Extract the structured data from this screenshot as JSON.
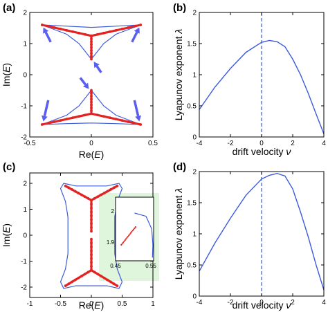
{
  "colors": {
    "curve": "#3b5bdb",
    "thick": "#e32222",
    "arrow": "#5a5ef0",
    "inset_bg": "#dff5dc",
    "frame": "#000000"
  },
  "chart_data": [
    {
      "panel": "(a)",
      "type": "line",
      "xlabel": "Re(E)",
      "ylabel": "Im(E)",
      "xlim": [
        -0.5,
        0.5
      ],
      "ylim": [
        -2,
        2
      ],
      "xticks": [
        -0.5,
        0,
        0.5
      ],
      "yticks": [
        -2,
        -1,
        0,
        1,
        2
      ],
      "xtick_labels": [
        "-0.5",
        "0",
        "0.5"
      ],
      "ytick_labels": [
        "-2",
        "-1",
        "0",
        "1",
        "2"
      ],
      "curves": [
        {
          "kind": "thin",
          "points": [
            [
              -0.4,
              1.6
            ],
            [
              -0.2,
              1.3
            ],
            [
              -0.1,
              1.0
            ],
            [
              0,
              0.5
            ],
            [
              0.1,
              1.0
            ],
            [
              0.2,
              1.3
            ],
            [
              0.4,
              1.6
            ]
          ]
        },
        {
          "kind": "thin",
          "points": [
            [
              -0.4,
              1.6
            ],
            [
              -0.2,
              1.56
            ],
            [
              0,
              1.52
            ],
            [
              0.2,
              1.56
            ],
            [
              0.4,
              1.6
            ]
          ]
        },
        {
          "kind": "thin",
          "points": [
            [
              -0.4,
              -1.6
            ],
            [
              -0.2,
              -1.3
            ],
            [
              -0.1,
              -1.0
            ],
            [
              0,
              -0.5
            ],
            [
              0.1,
              -1.0
            ],
            [
              0.2,
              -1.3
            ],
            [
              0.4,
              -1.6
            ]
          ]
        },
        {
          "kind": "thin",
          "points": [
            [
              -0.4,
              -1.6
            ],
            [
              -0.2,
              -1.57
            ],
            [
              0,
              -1.55
            ],
            [
              0.2,
              -1.57
            ],
            [
              0.4,
              -1.6
            ]
          ]
        },
        {
          "kind": "thick",
          "points": [
            [
              -0.4,
              1.6
            ],
            [
              0,
              1.25
            ],
            [
              0.4,
              1.6
            ]
          ]
        },
        {
          "kind": "thick",
          "points": [
            [
              0,
              1.25
            ],
            [
              0,
              0.5
            ]
          ]
        },
        {
          "kind": "thick",
          "points": [
            [
              -0.4,
              -1.6
            ],
            [
              0,
              -1.25
            ],
            [
              0.4,
              -1.6
            ]
          ]
        },
        {
          "kind": "thick",
          "points": [
            [
              0,
              -1.25
            ],
            [
              0,
              -0.5
            ]
          ]
        }
      ],
      "arrows": [
        [
          [
            -0.33,
            1.05
          ],
          [
            -0.39,
            1.52
          ]
        ],
        [
          [
            0.33,
            1.05
          ],
          [
            0.39,
            1.52
          ]
        ],
        [
          [
            0.08,
            0.07
          ],
          [
            0.02,
            0.42
          ]
        ],
        [
          [
            -0.09,
            -0.1
          ],
          [
            -0.02,
            -0.46
          ]
        ],
        [
          [
            -0.35,
            -0.82
          ],
          [
            -0.39,
            -1.5
          ]
        ],
        [
          [
            0.35,
            -0.82
          ],
          [
            0.39,
            -1.5
          ]
        ]
      ]
    },
    {
      "panel": "(b)",
      "type": "line",
      "xlabel": "drift velocity ν",
      "ylabel": "Lyapunov exponent λ",
      "xlim": [
        -4,
        4
      ],
      "ylim": [
        0,
        2
      ],
      "xticks": [
        -4,
        -2,
        0,
        2,
        4
      ],
      "yticks": [
        0,
        0.5,
        1,
        1.5,
        2
      ],
      "xtick_labels": [
        "-4",
        "-2",
        "0",
        "2",
        "4"
      ],
      "ytick_labels": [
        "0",
        "0.5",
        "1",
        "1.5",
        "2"
      ],
      "vline_x": 0,
      "x": [
        -4,
        -3,
        -2,
        -1,
        0,
        0.5,
        1,
        1.5,
        2,
        2.5,
        3,
        3.5,
        4
      ],
      "y": [
        0.44,
        0.8,
        1.1,
        1.36,
        1.52,
        1.55,
        1.53,
        1.45,
        1.25,
        1.0,
        0.7,
        0.37,
        0.05
      ]
    },
    {
      "panel": "(c)",
      "type": "line",
      "xlabel": "Re(E)",
      "ylabel": "Im(E)",
      "xlim": [
        -1,
        1
      ],
      "ylim": [
        -2.4,
        2.4
      ],
      "xticks": [
        -1,
        -0.5,
        0,
        0.5,
        1
      ],
      "yticks": [
        -2,
        -1,
        0,
        1,
        2
      ],
      "xtick_labels": [
        "-1",
        "-0.5",
        "0",
        "0.5",
        "1"
      ],
      "ytick_labels": [
        "-2",
        "-1",
        "0",
        "1",
        "2"
      ],
      "outer_loop": [
        [
          -0.45,
          2.0
        ],
        [
          -0.25,
          1.9
        ],
        [
          0,
          1.9
        ],
        [
          0.25,
          1.9
        ],
        [
          0.45,
          2.0
        ],
        [
          0.5,
          1.8
        ],
        [
          0.42,
          1.3
        ],
        [
          0.38,
          0.7
        ],
        [
          0.38,
          0
        ],
        [
          0.38,
          -0.7
        ],
        [
          0.42,
          -1.3
        ],
        [
          0.5,
          -1.8
        ],
        [
          0.45,
          -2.05
        ],
        [
          0.25,
          -1.95
        ],
        [
          0,
          -1.95
        ],
        [
          -0.25,
          -1.95
        ],
        [
          -0.45,
          -2.05
        ],
        [
          -0.5,
          -1.8
        ],
        [
          -0.42,
          -1.3
        ],
        [
          -0.38,
          -0.7
        ],
        [
          -0.38,
          0
        ],
        [
          -0.38,
          0.7
        ],
        [
          -0.42,
          1.3
        ],
        [
          -0.5,
          1.8
        ],
        [
          -0.45,
          2.0
        ]
      ],
      "thick": [
        [
          [
            -0.42,
            1.9
          ],
          [
            0,
            1.35
          ],
          [
            0.42,
            1.9
          ]
        ],
        [
          [
            0,
            1.35
          ],
          [
            0,
            0.15
          ]
        ],
        [
          [
            -0.42,
            -1.95
          ],
          [
            0,
            -1.35
          ],
          [
            0.42,
            -1.95
          ]
        ],
        [
          [
            0,
            -1.35
          ],
          [
            0,
            -0.15
          ]
        ]
      ],
      "inset": {
        "xlim": [
          0.45,
          0.55
        ],
        "ylim": [
          1.85,
          2.05
        ],
        "xtick_labels": [
          "0.45",
          "0.55"
        ],
        "ytick_labels": [
          "2",
          "1.9"
        ],
        "curve": [
          [
            0.5,
            2.0
          ],
          [
            0.53,
            1.99
          ],
          [
            0.545,
            1.95
          ],
          [
            0.548,
            1.9
          ],
          [
            0.547,
            1.86
          ]
        ],
        "dots": [
          [
            0.465,
            1.9
          ],
          [
            0.475,
            1.915
          ],
          [
            0.485,
            1.93
          ],
          [
            0.495,
            1.945
          ],
          [
            0.505,
            1.96
          ]
        ]
      }
    },
    {
      "panel": "(d)",
      "type": "line",
      "xlabel": "drift velocity ν",
      "ylabel": "Lyapunov exponent λ",
      "xlim": [
        -4,
        4
      ],
      "ylim": [
        0,
        2
      ],
      "xticks": [
        -4,
        -2,
        0,
        2,
        4
      ],
      "yticks": [
        0,
        0.5,
        1,
        1.5,
        2
      ],
      "xtick_labels": [
        "-4",
        "-2",
        "0",
        "2",
        "4"
      ],
      "ytick_labels": [
        "0",
        "0.5",
        "1",
        "1.5",
        "2"
      ],
      "vline_x": 0,
      "x": [
        -4,
        -3,
        -2,
        -1,
        0,
        0.5,
        1,
        1.5,
        2,
        2.5,
        3,
        3.5,
        4
      ],
      "y": [
        0.4,
        0.85,
        1.25,
        1.62,
        1.88,
        1.94,
        1.97,
        1.93,
        1.72,
        1.35,
        0.95,
        0.5,
        0.1
      ]
    }
  ]
}
